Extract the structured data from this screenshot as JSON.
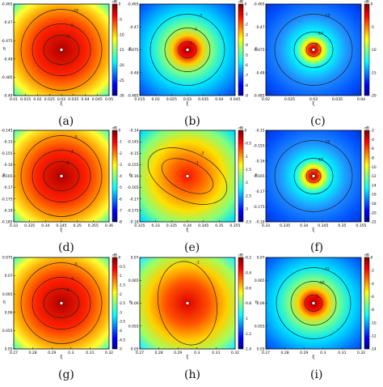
{
  "figure": {
    "panels": [
      {
        "id": "a",
        "caption": "(a)",
        "ylabel": "η",
        "xlabel": "ξ",
        "cb_unit": "dB",
        "x_ticks": [
          "0.01",
          "0.015",
          "0.02",
          "0.025",
          "0.03",
          "0.035",
          "0.04",
          "0.045",
          "0.05"
        ],
        "y_ticks": [
          "-0.465",
          "-0.47",
          "-0.475",
          "-0.48",
          "-0.485",
          "-0.49"
        ],
        "cb_ticks": [
          "0",
          "-5",
          "-10",
          "-15",
          "-20",
          "-25",
          "-30"
        ],
        "contour_labels": [
          "-10",
          "-5",
          "-3",
          "-1"
        ],
        "style": "broad"
      },
      {
        "id": "b",
        "caption": "(b)",
        "ylabel": "η",
        "xlabel": "ξ",
        "cb_unit": "dB",
        "x_ticks": [
          "0.015",
          "0.02",
          "0.025",
          "0.03",
          "0.035",
          "0.04",
          "0.045"
        ],
        "y_ticks": [
          "-0.465",
          "-0.47",
          "-0.475",
          "-0.48",
          "-0.485"
        ],
        "cb_ticks": [
          "0",
          "-1",
          "-2",
          "-3",
          "-4",
          "-5",
          "-6",
          "-7",
          "-8",
          "-9"
        ],
        "contour_labels": [
          "-5",
          "-3",
          "-1"
        ],
        "style": "spot"
      },
      {
        "id": "c",
        "caption": "(c)",
        "ylabel": "η",
        "xlabel": "ξ",
        "cb_unit": "dB",
        "x_ticks": [
          "0.02",
          "0.025",
          "0.03",
          "0.035",
          "0.04"
        ],
        "y_ticks": [
          "-0.465",
          "-0.47",
          "-0.475",
          "-0.48",
          "-0.485"
        ],
        "cb_ticks": [
          "0",
          "-5",
          "-10",
          "-15",
          "-20"
        ],
        "contour_labels": [
          "-15",
          "-10",
          "-5"
        ],
        "style": "tight"
      },
      {
        "id": "d",
        "caption": "(d)",
        "ylabel": "η",
        "xlabel": "ξ",
        "cb_unit": "dB",
        "x_ticks": [
          "0.33",
          "0.335",
          "0.34",
          "0.345",
          "0.35",
          "0.355",
          "0.36"
        ],
        "y_ticks": [
          "-0.145",
          "-0.15",
          "-0.155",
          "-0.16",
          "-0.165",
          "-0.17",
          "-0.175",
          "-0.18",
          "-0.185"
        ],
        "cb_ticks": [
          "0",
          "-1",
          "-2",
          "-3",
          "-4",
          "-5",
          "-6",
          "-7",
          "-8"
        ],
        "contour_labels": [
          "-5",
          "-3",
          "-1"
        ],
        "style": "broad"
      },
      {
        "id": "e",
        "caption": "(e)",
        "ylabel": "η",
        "xlabel": "ξ",
        "cb_unit": "dB",
        "x_ticks": [
          "0.325",
          "0.33",
          "0.335",
          "0.34",
          "0.345",
          "0.35",
          "0.355"
        ],
        "y_ticks": [
          "-0.14",
          "-0.145",
          "-0.15",
          "-0.155",
          "-0.16",
          "-0.165",
          "-0.17",
          "-0.175",
          "-0.18"
        ],
        "cb_ticks": [
          "0",
          "-0.5",
          "-1",
          "-1.5",
          "-2",
          "-2.5",
          "-3",
          "-3.5"
        ],
        "contour_labels": [
          "-3",
          "-1"
        ],
        "style": "tilted"
      },
      {
        "id": "f",
        "caption": "(f)",
        "ylabel": "η",
        "xlabel": "ξ",
        "cb_unit": "dB",
        "x_ticks": [
          "0.33",
          "0.335",
          "0.34",
          "0.345",
          "0.35",
          "0.355"
        ],
        "y_ticks": [
          "-0.15",
          "-0.155",
          "-0.16",
          "-0.165",
          "-0.17",
          "-0.175",
          "-0.18"
        ],
        "cb_ticks": [
          "-2",
          "-4",
          "-6",
          "-8",
          "-10",
          "-12",
          "-14",
          "-16",
          "-18",
          "-20",
          "-22"
        ],
        "contour_labels": [
          "-15",
          "-10",
          "-5"
        ],
        "style": "tight"
      },
      {
        "id": "g",
        "caption": "(g)",
        "ylabel": "η",
        "xlabel": "ξ",
        "cb_unit": "dB",
        "x_ticks": [
          "0.27",
          "0.28",
          "0.29",
          "0.3",
          "0.31",
          "0.32"
        ],
        "y_ticks": [
          "0.075",
          "0.07",
          "0.065",
          "0.06",
          "0.055",
          "0.05"
        ],
        "cb_ticks": [
          "0",
          "-0.5",
          "-1",
          "-1.5",
          "-2",
          "-2.5",
          "-3",
          "-3.5",
          "-4",
          "-4.5",
          "-5"
        ],
        "contour_labels": [
          "-5",
          "-3",
          "-1"
        ],
        "style": "broad"
      },
      {
        "id": "h",
        "caption": "(h)",
        "ylabel": "η",
        "xlabel": "ξ",
        "cb_unit": "dB",
        "x_ticks": [
          "0.27",
          "0.28",
          "0.29",
          "0.3",
          "0.31",
          "0.32"
        ],
        "y_ticks": [
          "0.07",
          "0.065",
          "0.06",
          "0.055",
          "0.05"
        ],
        "cb_ticks": [
          "-0.2",
          "-0.4",
          "-0.6",
          "-0.8",
          "-1",
          "-1.2",
          "-1.4"
        ],
        "contour_labels": [
          "-1"
        ],
        "style": "tall"
      },
      {
        "id": "i",
        "caption": "(i)",
        "ylabel": "η",
        "xlabel": "ξ",
        "cb_unit": "dB",
        "x_ticks": [
          "0.27",
          "0.28",
          "0.29",
          "0.3",
          "0.31",
          "0.32"
        ],
        "y_ticks": [
          "0.07",
          "0.065",
          "0.06",
          "0.055",
          "0.05"
        ],
        "cb_ticks": [
          "0",
          "-2",
          "-4",
          "-6",
          "-8",
          "-10",
          "-12",
          "-14"
        ],
        "contour_labels": [
          "-15",
          "-10",
          "-5"
        ],
        "style": "spot"
      }
    ]
  }
}
